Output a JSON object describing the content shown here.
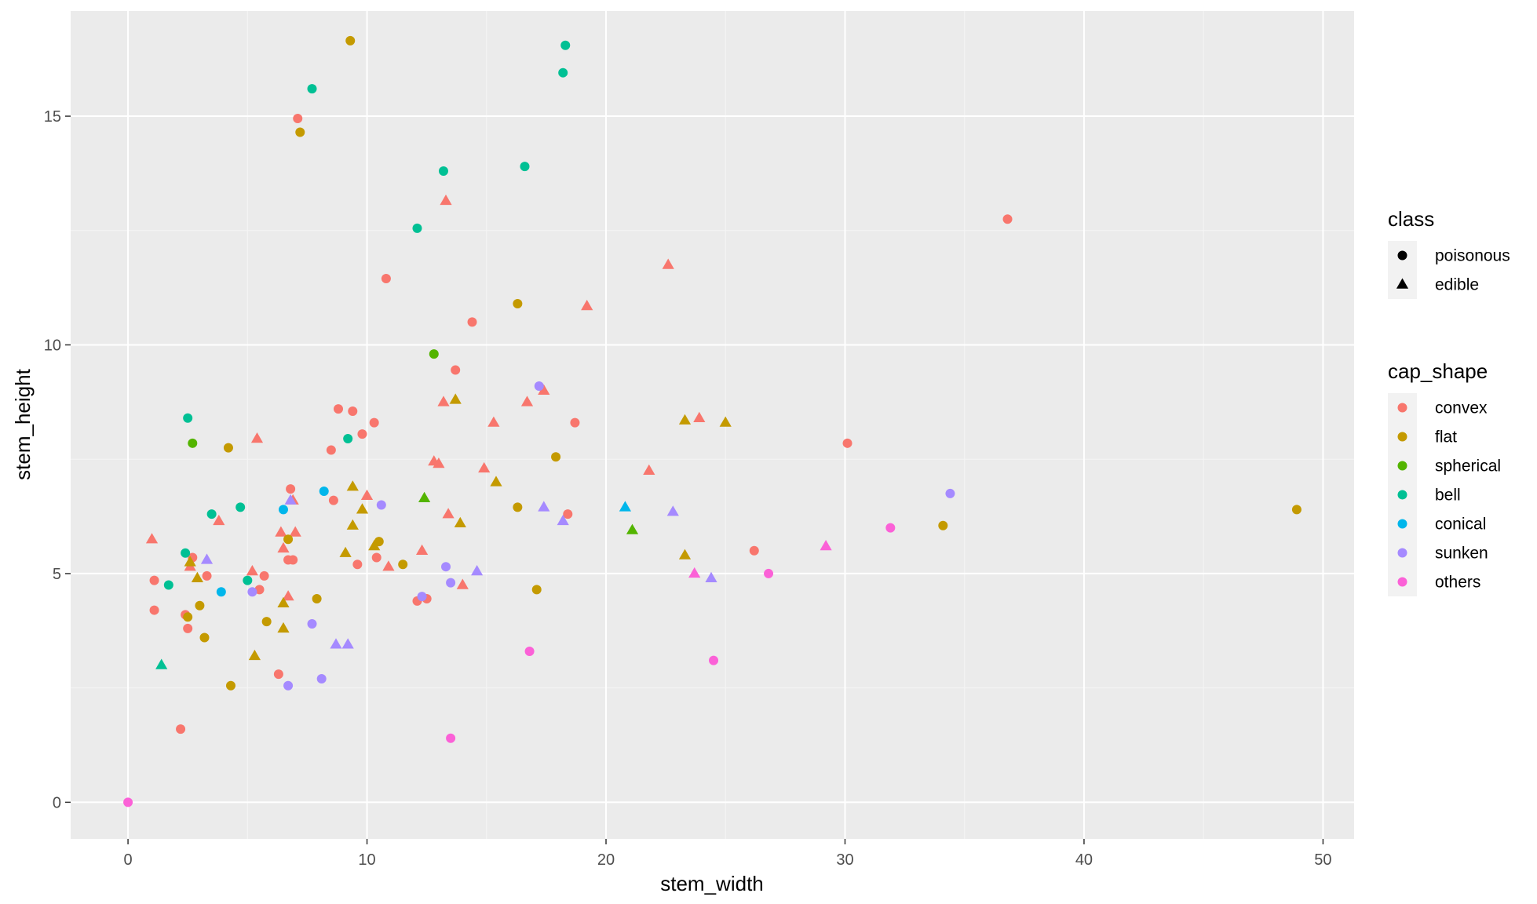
{
  "chart_data": {
    "type": "scatter",
    "xlabel": "stem_width",
    "ylabel": "stem_height",
    "xlim": [
      -2.4,
      51.3
    ],
    "ylim": [
      -0.8,
      17.3
    ],
    "x_ticks": [
      0,
      10,
      20,
      30,
      40,
      50
    ],
    "y_ticks": [
      0,
      5,
      10,
      15
    ],
    "grid": true,
    "legend_placement": "right",
    "shape_legend": {
      "title": "class",
      "entries": [
        {
          "label": "poisonous",
          "shape": "circle"
        },
        {
          "label": "edible",
          "shape": "triangle"
        }
      ]
    },
    "color_legend": {
      "title": "cap_shape",
      "entries": [
        {
          "label": "convex",
          "color": "#F8766D"
        },
        {
          "label": "flat",
          "color": "#C49A00"
        },
        {
          "label": "spherical",
          "color": "#53B400"
        },
        {
          "label": "bell",
          "color": "#00C094"
        },
        {
          "label": "conical",
          "color": "#00B6EB"
        },
        {
          "label": "sunken",
          "color": "#A58AFF"
        },
        {
          "label": "others",
          "color": "#FB61D7"
        }
      ]
    },
    "points": [
      {
        "x": 36.8,
        "y": 12.75,
        "class": "poisonous",
        "cap_shape": "convex"
      },
      {
        "x": 7.1,
        "y": 14.95,
        "class": "poisonous",
        "cap_shape": "convex"
      },
      {
        "x": 10.8,
        "y": 11.45,
        "class": "poisonous",
        "cap_shape": "convex"
      },
      {
        "x": 14.4,
        "y": 10.5,
        "class": "poisonous",
        "cap_shape": "convex"
      },
      {
        "x": 13.7,
        "y": 9.45,
        "class": "poisonous",
        "cap_shape": "convex"
      },
      {
        "x": 8.8,
        "y": 8.6,
        "class": "poisonous",
        "cap_shape": "convex"
      },
      {
        "x": 9.4,
        "y": 8.55,
        "class": "poisonous",
        "cap_shape": "convex"
      },
      {
        "x": 10.3,
        "y": 8.3,
        "class": "poisonous",
        "cap_shape": "convex"
      },
      {
        "x": 18.7,
        "y": 8.3,
        "class": "poisonous",
        "cap_shape": "convex"
      },
      {
        "x": 9.8,
        "y": 8.05,
        "class": "poisonous",
        "cap_shape": "convex"
      },
      {
        "x": 8.5,
        "y": 7.7,
        "class": "poisonous",
        "cap_shape": "convex"
      },
      {
        "x": 30.1,
        "y": 7.85,
        "class": "poisonous",
        "cap_shape": "convex"
      },
      {
        "x": 6.8,
        "y": 6.85,
        "class": "poisonous",
        "cap_shape": "convex"
      },
      {
        "x": 8.6,
        "y": 6.6,
        "class": "poisonous",
        "cap_shape": "convex"
      },
      {
        "x": 18.4,
        "y": 6.3,
        "class": "poisonous",
        "cap_shape": "convex"
      },
      {
        "x": 26.2,
        "y": 5.5,
        "class": "poisonous",
        "cap_shape": "convex"
      },
      {
        "x": 2.7,
        "y": 5.35,
        "class": "poisonous",
        "cap_shape": "convex"
      },
      {
        "x": 6.7,
        "y": 5.3,
        "class": "poisonous",
        "cap_shape": "convex"
      },
      {
        "x": 6.9,
        "y": 5.3,
        "class": "poisonous",
        "cap_shape": "convex"
      },
      {
        "x": 10.4,
        "y": 5.35,
        "class": "poisonous",
        "cap_shape": "convex"
      },
      {
        "x": 9.6,
        "y": 5.2,
        "class": "poisonous",
        "cap_shape": "convex"
      },
      {
        "x": 3.3,
        "y": 4.95,
        "class": "poisonous",
        "cap_shape": "convex"
      },
      {
        "x": 5.7,
        "y": 4.95,
        "class": "poisonous",
        "cap_shape": "convex"
      },
      {
        "x": 1.1,
        "y": 4.85,
        "class": "poisonous",
        "cap_shape": "convex"
      },
      {
        "x": 5.5,
        "y": 4.65,
        "class": "poisonous",
        "cap_shape": "convex"
      },
      {
        "x": 12.5,
        "y": 4.45,
        "class": "poisonous",
        "cap_shape": "convex"
      },
      {
        "x": 12.1,
        "y": 4.4,
        "class": "poisonous",
        "cap_shape": "convex"
      },
      {
        "x": 1.1,
        "y": 4.2,
        "class": "poisonous",
        "cap_shape": "convex"
      },
      {
        "x": 2.4,
        "y": 4.1,
        "class": "poisonous",
        "cap_shape": "convex"
      },
      {
        "x": 2.5,
        "y": 3.8,
        "class": "poisonous",
        "cap_shape": "convex"
      },
      {
        "x": 6.3,
        "y": 2.8,
        "class": "poisonous",
        "cap_shape": "convex"
      },
      {
        "x": 2.2,
        "y": 1.6,
        "class": "poisonous",
        "cap_shape": "convex"
      },
      {
        "x": 13.3,
        "y": 13.15,
        "class": "edible",
        "cap_shape": "convex"
      },
      {
        "x": 22.6,
        "y": 11.75,
        "class": "edible",
        "cap_shape": "convex"
      },
      {
        "x": 19.2,
        "y": 10.85,
        "class": "edible",
        "cap_shape": "convex"
      },
      {
        "x": 13.2,
        "y": 8.75,
        "class": "edible",
        "cap_shape": "convex"
      },
      {
        "x": 16.7,
        "y": 8.75,
        "class": "edible",
        "cap_shape": "convex"
      },
      {
        "x": 17.4,
        "y": 9.0,
        "class": "edible",
        "cap_shape": "convex"
      },
      {
        "x": 23.9,
        "y": 8.4,
        "class": "edible",
        "cap_shape": "convex"
      },
      {
        "x": 15.3,
        "y": 8.3,
        "class": "edible",
        "cap_shape": "convex"
      },
      {
        "x": 5.4,
        "y": 7.95,
        "class": "edible",
        "cap_shape": "convex"
      },
      {
        "x": 12.8,
        "y": 7.45,
        "class": "edible",
        "cap_shape": "convex"
      },
      {
        "x": 13.0,
        "y": 7.4,
        "class": "edible",
        "cap_shape": "convex"
      },
      {
        "x": 14.9,
        "y": 7.3,
        "class": "edible",
        "cap_shape": "convex"
      },
      {
        "x": 21.8,
        "y": 7.25,
        "class": "edible",
        "cap_shape": "convex"
      },
      {
        "x": 10.0,
        "y": 6.7,
        "class": "edible",
        "cap_shape": "convex"
      },
      {
        "x": 6.9,
        "y": 6.6,
        "class": "edible",
        "cap_shape": "convex"
      },
      {
        "x": 13.4,
        "y": 6.3,
        "class": "edible",
        "cap_shape": "convex"
      },
      {
        "x": 3.8,
        "y": 6.15,
        "class": "edible",
        "cap_shape": "convex"
      },
      {
        "x": 6.4,
        "y": 5.9,
        "class": "edible",
        "cap_shape": "convex"
      },
      {
        "x": 7.0,
        "y": 5.9,
        "class": "edible",
        "cap_shape": "convex"
      },
      {
        "x": 1.0,
        "y": 5.75,
        "class": "edible",
        "cap_shape": "convex"
      },
      {
        "x": 6.5,
        "y": 5.55,
        "class": "edible",
        "cap_shape": "convex"
      },
      {
        "x": 12.3,
        "y": 5.5,
        "class": "edible",
        "cap_shape": "convex"
      },
      {
        "x": 2.6,
        "y": 5.15,
        "class": "edible",
        "cap_shape": "convex"
      },
      {
        "x": 10.9,
        "y": 5.15,
        "class": "edible",
        "cap_shape": "convex"
      },
      {
        "x": 5.2,
        "y": 5.05,
        "class": "edible",
        "cap_shape": "convex"
      },
      {
        "x": 6.7,
        "y": 4.5,
        "class": "edible",
        "cap_shape": "convex"
      },
      {
        "x": 14.0,
        "y": 4.75,
        "class": "edible",
        "cap_shape": "convex"
      },
      {
        "x": 9.3,
        "y": 16.65,
        "class": "poisonous",
        "cap_shape": "flat"
      },
      {
        "x": 7.2,
        "y": 14.65,
        "class": "poisonous",
        "cap_shape": "flat"
      },
      {
        "x": 16.3,
        "y": 10.9,
        "class": "poisonous",
        "cap_shape": "flat"
      },
      {
        "x": 4.2,
        "y": 7.75,
        "class": "poisonous",
        "cap_shape": "flat"
      },
      {
        "x": 17.9,
        "y": 7.55,
        "class": "poisonous",
        "cap_shape": "flat"
      },
      {
        "x": 16.3,
        "y": 6.45,
        "class": "poisonous",
        "cap_shape": "flat"
      },
      {
        "x": 48.9,
        "y": 6.4,
        "class": "poisonous",
        "cap_shape": "flat"
      },
      {
        "x": 34.1,
        "y": 6.05,
        "class": "poisonous",
        "cap_shape": "flat"
      },
      {
        "x": 6.7,
        "y": 5.75,
        "class": "poisonous",
        "cap_shape": "flat"
      },
      {
        "x": 10.5,
        "y": 5.7,
        "class": "poisonous",
        "cap_shape": "flat"
      },
      {
        "x": 11.5,
        "y": 5.2,
        "class": "poisonous",
        "cap_shape": "flat"
      },
      {
        "x": 17.1,
        "y": 4.65,
        "class": "poisonous",
        "cap_shape": "flat"
      },
      {
        "x": 7.9,
        "y": 4.45,
        "class": "poisonous",
        "cap_shape": "flat"
      },
      {
        "x": 3.0,
        "y": 4.3,
        "class": "poisonous",
        "cap_shape": "flat"
      },
      {
        "x": 2.5,
        "y": 4.05,
        "class": "poisonous",
        "cap_shape": "flat"
      },
      {
        "x": 5.8,
        "y": 3.95,
        "class": "poisonous",
        "cap_shape": "flat"
      },
      {
        "x": 3.2,
        "y": 3.6,
        "class": "poisonous",
        "cap_shape": "flat"
      },
      {
        "x": 4.3,
        "y": 2.55,
        "class": "poisonous",
        "cap_shape": "flat"
      },
      {
        "x": 13.7,
        "y": 8.8,
        "class": "edible",
        "cap_shape": "flat"
      },
      {
        "x": 23.3,
        "y": 8.35,
        "class": "edible",
        "cap_shape": "flat"
      },
      {
        "x": 25.0,
        "y": 8.3,
        "class": "edible",
        "cap_shape": "flat"
      },
      {
        "x": 15.4,
        "y": 7.0,
        "class": "edible",
        "cap_shape": "flat"
      },
      {
        "x": 9.4,
        "y": 6.9,
        "class": "edible",
        "cap_shape": "flat"
      },
      {
        "x": 9.8,
        "y": 6.4,
        "class": "edible",
        "cap_shape": "flat"
      },
      {
        "x": 13.9,
        "y": 6.1,
        "class": "edible",
        "cap_shape": "flat"
      },
      {
        "x": 9.4,
        "y": 6.05,
        "class": "edible",
        "cap_shape": "flat"
      },
      {
        "x": 10.3,
        "y": 5.6,
        "class": "edible",
        "cap_shape": "flat"
      },
      {
        "x": 9.1,
        "y": 5.45,
        "class": "edible",
        "cap_shape": "flat"
      },
      {
        "x": 23.3,
        "y": 5.4,
        "class": "edible",
        "cap_shape": "flat"
      },
      {
        "x": 2.6,
        "y": 5.25,
        "class": "edible",
        "cap_shape": "flat"
      },
      {
        "x": 2.9,
        "y": 4.9,
        "class": "edible",
        "cap_shape": "flat"
      },
      {
        "x": 6.5,
        "y": 4.35,
        "class": "edible",
        "cap_shape": "flat"
      },
      {
        "x": 6.5,
        "y": 3.8,
        "class": "edible",
        "cap_shape": "flat"
      },
      {
        "x": 5.3,
        "y": 3.2,
        "class": "edible",
        "cap_shape": "flat"
      },
      {
        "x": 12.8,
        "y": 9.8,
        "class": "poisonous",
        "cap_shape": "spherical"
      },
      {
        "x": 2.7,
        "y": 7.85,
        "class": "poisonous",
        "cap_shape": "spherical"
      },
      {
        "x": 12.4,
        "y": 6.65,
        "class": "edible",
        "cap_shape": "spherical"
      },
      {
        "x": 21.1,
        "y": 5.95,
        "class": "edible",
        "cap_shape": "spherical"
      },
      {
        "x": 18.3,
        "y": 16.55,
        "class": "poisonous",
        "cap_shape": "bell"
      },
      {
        "x": 18.2,
        "y": 15.95,
        "class": "poisonous",
        "cap_shape": "bell"
      },
      {
        "x": 7.7,
        "y": 15.6,
        "class": "poisonous",
        "cap_shape": "bell"
      },
      {
        "x": 16.6,
        "y": 13.9,
        "class": "poisonous",
        "cap_shape": "bell"
      },
      {
        "x": 13.2,
        "y": 13.8,
        "class": "poisonous",
        "cap_shape": "bell"
      },
      {
        "x": 12.1,
        "y": 12.55,
        "class": "poisonous",
        "cap_shape": "bell"
      },
      {
        "x": 2.5,
        "y": 8.4,
        "class": "poisonous",
        "cap_shape": "bell"
      },
      {
        "x": 9.2,
        "y": 7.95,
        "class": "poisonous",
        "cap_shape": "bell"
      },
      {
        "x": 4.7,
        "y": 6.45,
        "class": "poisonous",
        "cap_shape": "bell"
      },
      {
        "x": 3.5,
        "y": 6.3,
        "class": "poisonous",
        "cap_shape": "bell"
      },
      {
        "x": 2.4,
        "y": 5.45,
        "class": "poisonous",
        "cap_shape": "bell"
      },
      {
        "x": 5.0,
        "y": 4.85,
        "class": "poisonous",
        "cap_shape": "bell"
      },
      {
        "x": 1.7,
        "y": 4.75,
        "class": "poisonous",
        "cap_shape": "bell"
      },
      {
        "x": 1.4,
        "y": 3.0,
        "class": "edible",
        "cap_shape": "bell"
      },
      {
        "x": 8.2,
        "y": 6.8,
        "class": "poisonous",
        "cap_shape": "conical"
      },
      {
        "x": 6.5,
        "y": 6.4,
        "class": "poisonous",
        "cap_shape": "conical"
      },
      {
        "x": 3.9,
        "y": 4.6,
        "class": "poisonous",
        "cap_shape": "conical"
      },
      {
        "x": 20.8,
        "y": 6.45,
        "class": "edible",
        "cap_shape": "conical"
      },
      {
        "x": 34.4,
        "y": 6.75,
        "class": "poisonous",
        "cap_shape": "sunken"
      },
      {
        "x": 17.2,
        "y": 9.1,
        "class": "poisonous",
        "cap_shape": "sunken"
      },
      {
        "x": 10.6,
        "y": 6.5,
        "class": "poisonous",
        "cap_shape": "sunken"
      },
      {
        "x": 13.3,
        "y": 5.15,
        "class": "poisonous",
        "cap_shape": "sunken"
      },
      {
        "x": 5.2,
        "y": 4.6,
        "class": "poisonous",
        "cap_shape": "sunken"
      },
      {
        "x": 13.5,
        "y": 4.8,
        "class": "poisonous",
        "cap_shape": "sunken"
      },
      {
        "x": 12.3,
        "y": 4.5,
        "class": "poisonous",
        "cap_shape": "sunken"
      },
      {
        "x": 7.7,
        "y": 3.9,
        "class": "poisonous",
        "cap_shape": "sunken"
      },
      {
        "x": 8.1,
        "y": 2.7,
        "class": "poisonous",
        "cap_shape": "sunken"
      },
      {
        "x": 6.7,
        "y": 2.55,
        "class": "poisonous",
        "cap_shape": "sunken"
      },
      {
        "x": 17.4,
        "y": 6.45,
        "class": "edible",
        "cap_shape": "sunken"
      },
      {
        "x": 22.8,
        "y": 6.35,
        "class": "edible",
        "cap_shape": "sunken"
      },
      {
        "x": 18.2,
        "y": 6.15,
        "class": "edible",
        "cap_shape": "sunken"
      },
      {
        "x": 6.8,
        "y": 6.6,
        "class": "edible",
        "cap_shape": "sunken"
      },
      {
        "x": 3.3,
        "y": 5.3,
        "class": "edible",
        "cap_shape": "sunken"
      },
      {
        "x": 14.6,
        "y": 5.05,
        "class": "edible",
        "cap_shape": "sunken"
      },
      {
        "x": 24.4,
        "y": 4.9,
        "class": "edible",
        "cap_shape": "sunken"
      },
      {
        "x": 8.7,
        "y": 3.45,
        "class": "edible",
        "cap_shape": "sunken"
      },
      {
        "x": 9.2,
        "y": 3.45,
        "class": "edible",
        "cap_shape": "sunken"
      },
      {
        "x": 31.9,
        "y": 6.0,
        "class": "poisonous",
        "cap_shape": "others"
      },
      {
        "x": 26.8,
        "y": 5.0,
        "class": "poisonous",
        "cap_shape": "others"
      },
      {
        "x": 16.8,
        "y": 3.3,
        "class": "poisonous",
        "cap_shape": "others"
      },
      {
        "x": 24.5,
        "y": 3.1,
        "class": "poisonous",
        "cap_shape": "others"
      },
      {
        "x": 13.5,
        "y": 1.4,
        "class": "poisonous",
        "cap_shape": "others"
      },
      {
        "x": 0.0,
        "y": 0.0,
        "class": "poisonous",
        "cap_shape": "others"
      },
      {
        "x": 29.2,
        "y": 5.6,
        "class": "edible",
        "cap_shape": "others"
      },
      {
        "x": 23.7,
        "y": 5.0,
        "class": "edible",
        "cap_shape": "others"
      }
    ]
  }
}
